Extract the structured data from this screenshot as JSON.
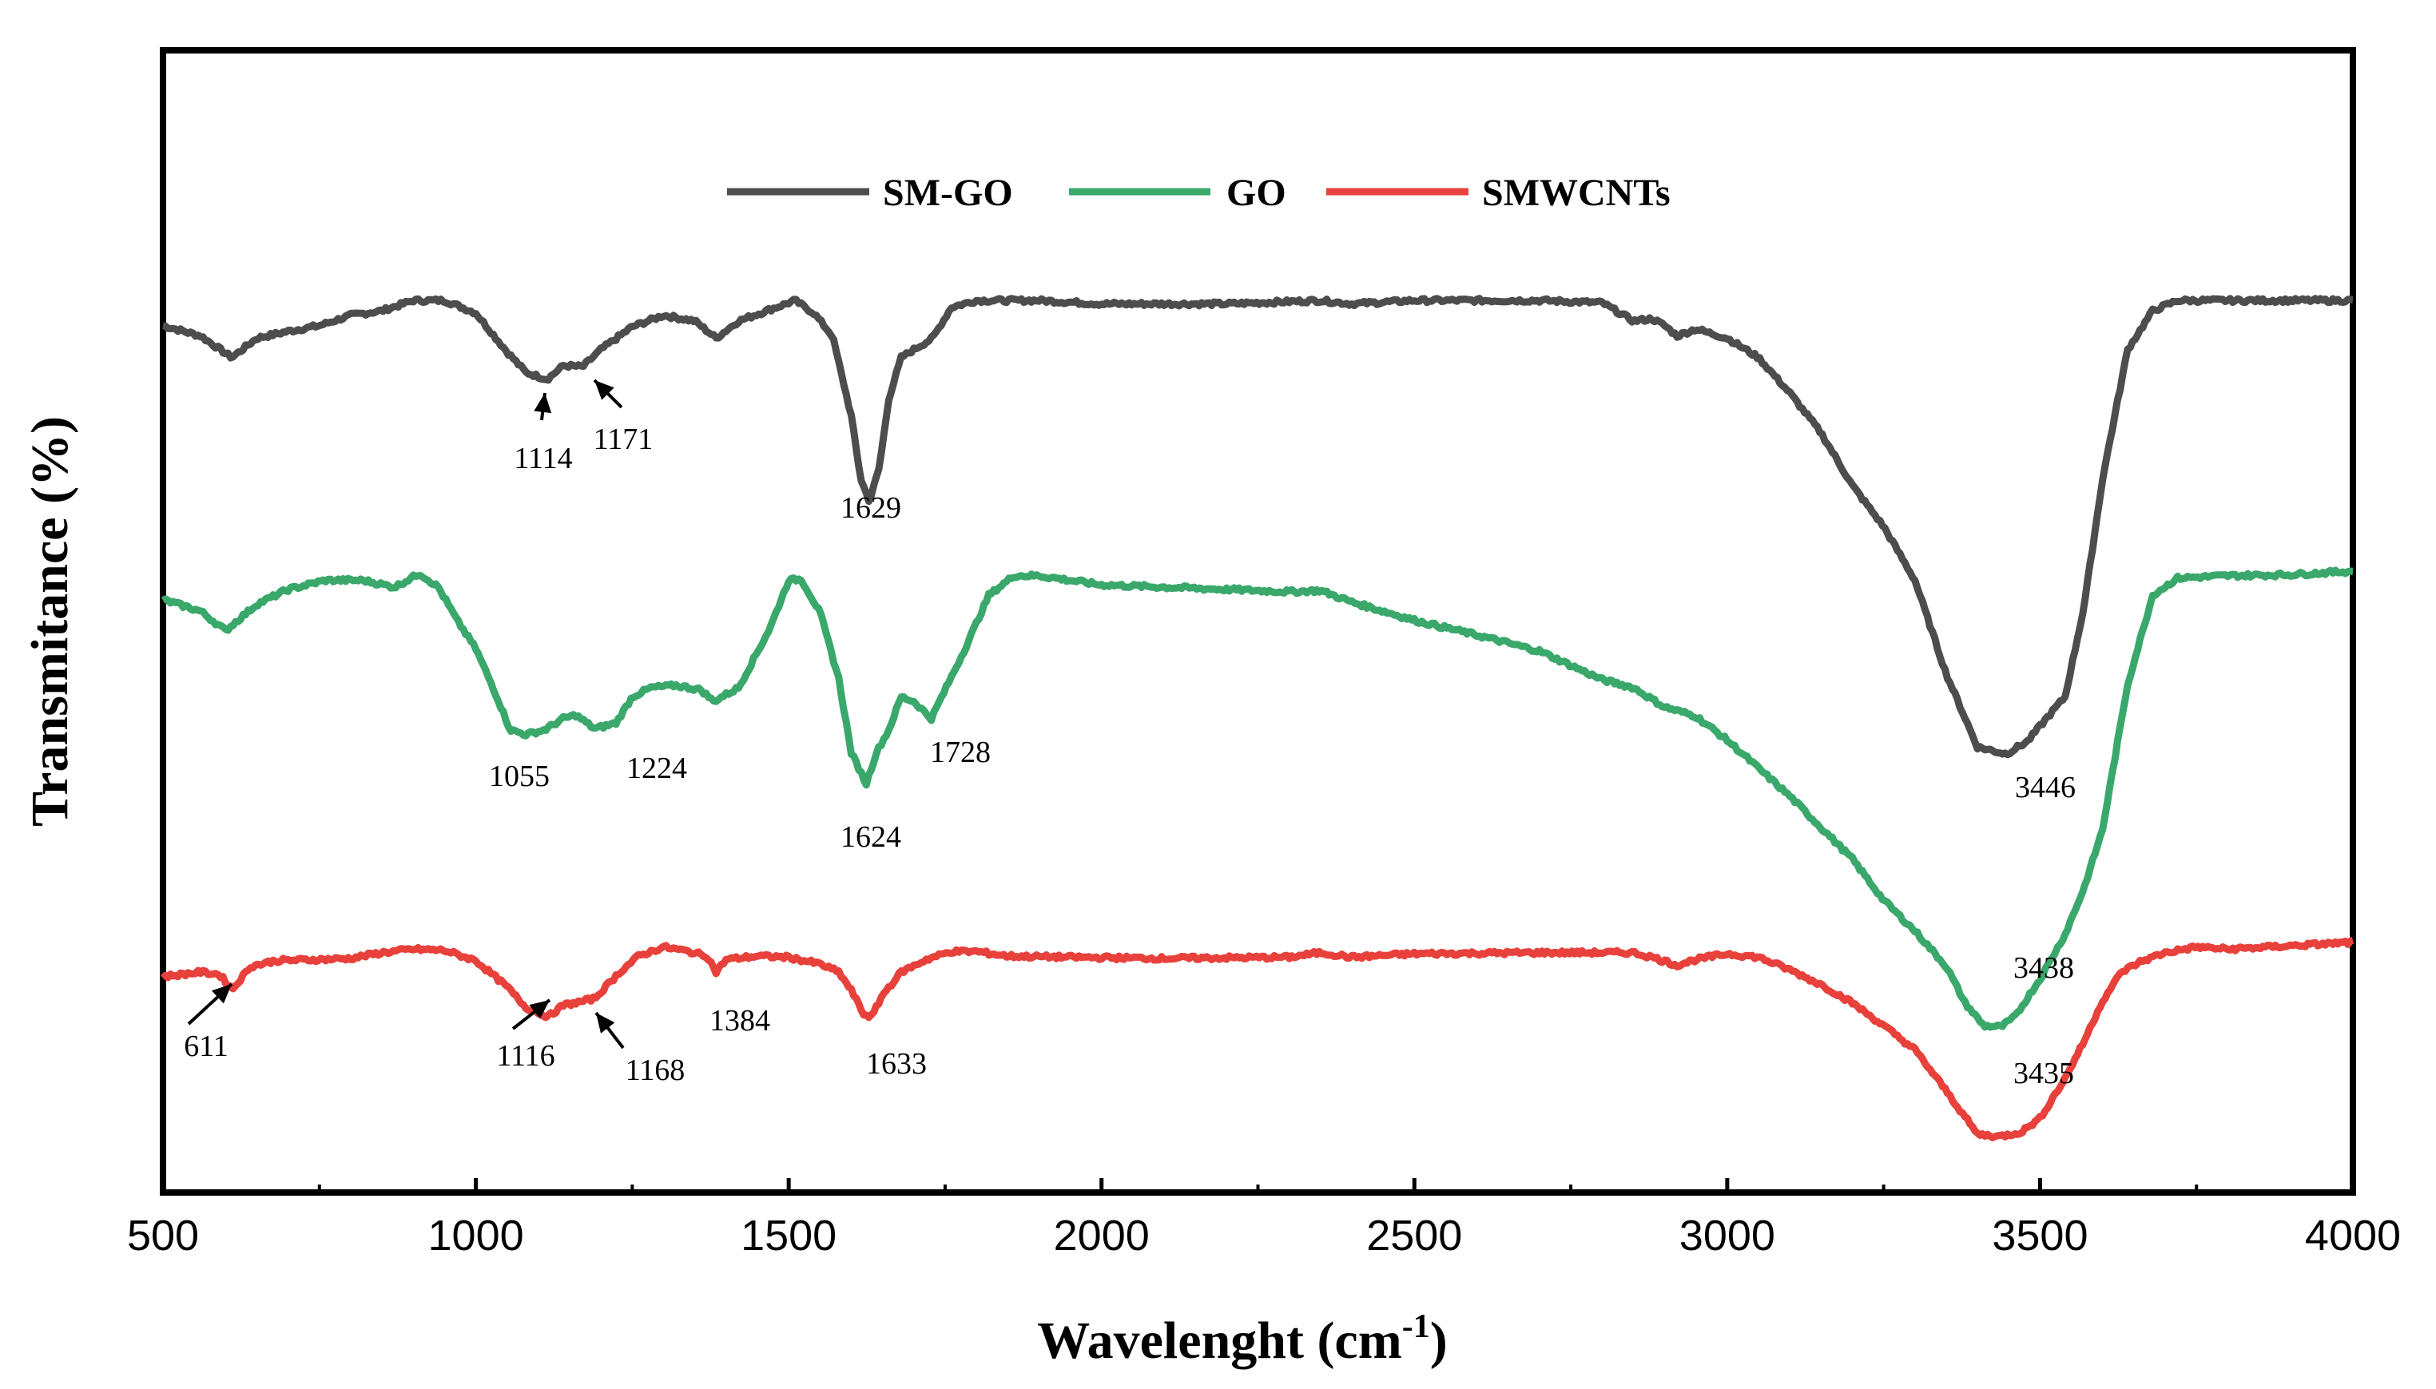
{
  "chart_data": {
    "type": "line",
    "title": "",
    "xlabel": "Wavelenght (cm",
    "xlabel_sup": "-1",
    "xlabel_tail": ")",
    "ylabel": "Transmitance (%)",
    "xlim": [
      500,
      4000
    ],
    "ylim": [
      0,
      100
    ],
    "xticks": [
      "500",
      "1000",
      "1500",
      "2000",
      "2500",
      "3000",
      "3500",
      "4000"
    ],
    "xtick_values": [
      500,
      1000,
      1500,
      2000,
      2500,
      3000,
      3500,
      4000
    ],
    "yticks_shown": false,
    "legend_position": "top",
    "series": [
      {
        "name": "SM-GO",
        "color": "#4d4d4d",
        "points": [
          [
            500,
            75.9
          ],
          [
            560,
            75.0
          ],
          [
            610,
            73.1
          ],
          [
            650,
            74.8
          ],
          [
            700,
            75.4
          ],
          [
            750,
            75.9
          ],
          [
            800,
            76.8
          ],
          [
            850,
            77.2
          ],
          [
            900,
            78.1
          ],
          [
            950,
            78.1
          ],
          [
            1000,
            77.0
          ],
          [
            1050,
            73.6
          ],
          [
            1080,
            71.8
          ],
          [
            1114,
            71.2
          ],
          [
            1140,
            72.4
          ],
          [
            1171,
            72.3
          ],
          [
            1200,
            73.8
          ],
          [
            1250,
            75.8
          ],
          [
            1300,
            76.8
          ],
          [
            1350,
            76.3
          ],
          [
            1384,
            74.8
          ],
          [
            1420,
            76.3
          ],
          [
            1480,
            77.5
          ],
          [
            1510,
            78.1
          ],
          [
            1540,
            77.0
          ],
          [
            1570,
            75.0
          ],
          [
            1600,
            68.0
          ],
          [
            1615,
            62.5
          ],
          [
            1629,
            60.5
          ],
          [
            1645,
            63.5
          ],
          [
            1660,
            69.5
          ],
          [
            1680,
            73.1
          ],
          [
            1700,
            73.8
          ],
          [
            1730,
            74.8
          ],
          [
            1760,
            77.5
          ],
          [
            1800,
            78.1
          ],
          [
            1900,
            78.1
          ],
          [
            2000,
            77.8
          ],
          [
            2100,
            77.8
          ],
          [
            2200,
            77.8
          ],
          [
            2350,
            78.1
          ],
          [
            2400,
            77.8
          ],
          [
            2500,
            78.1
          ],
          [
            2700,
            78.1
          ],
          [
            2800,
            77.9
          ],
          [
            2850,
            76.3
          ],
          [
            2880,
            76.5
          ],
          [
            2900,
            75.9
          ],
          [
            2920,
            75.0
          ],
          [
            2950,
            75.6
          ],
          [
            3000,
            74.8
          ],
          [
            3050,
            73.1
          ],
          [
            3100,
            70.0
          ],
          [
            3150,
            66.5
          ],
          [
            3200,
            61.9
          ],
          [
            3250,
            58.3
          ],
          [
            3300,
            53.6
          ],
          [
            3350,
            45.4
          ],
          [
            3400,
            39.0
          ],
          [
            3446,
            38.4
          ],
          [
            3480,
            39.5
          ],
          [
            3510,
            41.5
          ],
          [
            3540,
            43.4
          ],
          [
            3570,
            51.2
          ],
          [
            3600,
            62.5
          ],
          [
            3640,
            73.8
          ],
          [
            3680,
            77.2
          ],
          [
            3720,
            78.1
          ],
          [
            3800,
            78.1
          ],
          [
            3900,
            78.1
          ],
          [
            4000,
            78.1
          ]
        ]
      },
      {
        "name": "GO",
        "color": "#3aa86b",
        "points": [
          [
            500,
            51.9
          ],
          [
            560,
            50.9
          ],
          [
            600,
            49.2
          ],
          [
            650,
            51.5
          ],
          [
            700,
            52.8
          ],
          [
            760,
            53.6
          ],
          [
            820,
            53.6
          ],
          [
            870,
            53.0
          ],
          [
            910,
            54.2
          ],
          [
            940,
            53.0
          ],
          [
            970,
            50.1
          ],
          [
            1000,
            47.6
          ],
          [
            1030,
            43.9
          ],
          [
            1055,
            40.5
          ],
          [
            1080,
            40.1
          ],
          [
            1110,
            40.5
          ],
          [
            1140,
            41.5
          ],
          [
            1160,
            41.8
          ],
          [
            1190,
            40.6
          ],
          [
            1224,
            41.1
          ],
          [
            1250,
            43.4
          ],
          [
            1280,
            44.2
          ],
          [
            1320,
            44.4
          ],
          [
            1360,
            44.0
          ],
          [
            1380,
            43.0
          ],
          [
            1420,
            44.2
          ],
          [
            1470,
            49.4
          ],
          [
            1500,
            53.6
          ],
          [
            1520,
            53.7
          ],
          [
            1550,
            50.8
          ],
          [
            1580,
            45.0
          ],
          [
            1600,
            38.5
          ],
          [
            1624,
            35.8
          ],
          [
            1640,
            38.5
          ],
          [
            1660,
            40.5
          ],
          [
            1680,
            43.4
          ],
          [
            1700,
            43.0
          ],
          [
            1728,
            41.5
          ],
          [
            1750,
            44.0
          ],
          [
            1780,
            47.4
          ],
          [
            1820,
            52.3
          ],
          [
            1860,
            54.0
          ],
          [
            1900,
            54.0
          ],
          [
            2000,
            53.2
          ],
          [
            2100,
            53.0
          ],
          [
            2200,
            52.8
          ],
          [
            2300,
            52.6
          ],
          [
            2350,
            52.7
          ],
          [
            2400,
            51.7
          ],
          [
            2500,
            50.1
          ],
          [
            2600,
            48.8
          ],
          [
            2700,
            47.4
          ],
          [
            2800,
            44.9
          ],
          [
            2850,
            44.2
          ],
          [
            2900,
            42.5
          ],
          [
            2950,
            41.7
          ],
          [
            3000,
            39.6
          ],
          [
            3100,
            34.7
          ],
          [
            3200,
            29.2
          ],
          [
            3250,
            25.6
          ],
          [
            3300,
            22.9
          ],
          [
            3350,
            19.8
          ],
          [
            3380,
            16.6
          ],
          [
            3410,
            14.6
          ],
          [
            3438,
            14.5
          ],
          [
            3460,
            15.4
          ],
          [
            3500,
            18.7
          ],
          [
            3540,
            22.6
          ],
          [
            3570,
            26.6
          ],
          [
            3600,
            31.8
          ],
          [
            3640,
            44.5
          ],
          [
            3680,
            52.3
          ],
          [
            3720,
            53.8
          ],
          [
            3800,
            54.0
          ],
          [
            3900,
            54.1
          ],
          [
            4000,
            54.4
          ]
        ]
      },
      {
        "name": "SMWCNTs",
        "color": "#e8413c",
        "points": [
          [
            500,
            18.9
          ],
          [
            560,
            19.3
          ],
          [
            590,
            19.1
          ],
          [
            611,
            17.8
          ],
          [
            640,
            19.8
          ],
          [
            680,
            20.3
          ],
          [
            750,
            20.4
          ],
          [
            800,
            20.5
          ],
          [
            850,
            21.0
          ],
          [
            900,
            21.3
          ],
          [
            950,
            21.2
          ],
          [
            1000,
            20.3
          ],
          [
            1050,
            18.0
          ],
          [
            1080,
            16.2
          ],
          [
            1116,
            15.4
          ],
          [
            1140,
            16.4
          ],
          [
            1168,
            16.7
          ],
          [
            1190,
            17.0
          ],
          [
            1230,
            19.3
          ],
          [
            1260,
            20.7
          ],
          [
            1300,
            21.5
          ],
          [
            1340,
            21.1
          ],
          [
            1370,
            20.7
          ],
          [
            1384,
            19.3
          ],
          [
            1400,
            20.4
          ],
          [
            1450,
            20.7
          ],
          [
            1500,
            20.6
          ],
          [
            1550,
            20.0
          ],
          [
            1580,
            19.3
          ],
          [
            1600,
            17.7
          ],
          [
            1620,
            15.6
          ],
          [
            1633,
            15.4
          ],
          [
            1650,
            17.3
          ],
          [
            1680,
            19.3
          ],
          [
            1720,
            20.4
          ],
          [
            1760,
            21.1
          ],
          [
            1800,
            21.1
          ],
          [
            1850,
            20.7
          ],
          [
            1950,
            20.6
          ],
          [
            2100,
            20.5
          ],
          [
            2300,
            20.6
          ],
          [
            2350,
            21.0
          ],
          [
            2400,
            20.6
          ],
          [
            2500,
            20.9
          ],
          [
            2700,
            21.0
          ],
          [
            2850,
            21.0
          ],
          [
            2880,
            20.6
          ],
          [
            2920,
            19.9
          ],
          [
            2950,
            20.4
          ],
          [
            3000,
            20.9
          ],
          [
            3050,
            20.6
          ],
          [
            3100,
            19.5
          ],
          [
            3150,
            18.2
          ],
          [
            3200,
            16.6
          ],
          [
            3250,
            14.6
          ],
          [
            3300,
            12.5
          ],
          [
            3350,
            8.9
          ],
          [
            3400,
            5.1
          ],
          [
            3435,
            4.9
          ],
          [
            3470,
            5.3
          ],
          [
            3500,
            6.5
          ],
          [
            3540,
            10.0
          ],
          [
            3570,
            13.2
          ],
          [
            3600,
            16.8
          ],
          [
            3630,
            19.3
          ],
          [
            3660,
            20.2
          ],
          [
            3700,
            21.0
          ],
          [
            3750,
            21.5
          ],
          [
            3800,
            21.3
          ],
          [
            3900,
            21.6
          ],
          [
            4000,
            21.9
          ]
        ]
      }
    ],
    "annotations": [
      {
        "text": "1114",
        "x": 1114,
        "series": "SM-GO",
        "arrow": true
      },
      {
        "text": "1171",
        "x": 1171,
        "series": "SM-GO",
        "arrow": true
      },
      {
        "text": "1629",
        "x": 1629,
        "series": "SM-GO",
        "arrow": false
      },
      {
        "text": "3446",
        "x": 3446,
        "series": "SM-GO",
        "arrow": false
      },
      {
        "text": "1055",
        "x": 1055,
        "series": "GO",
        "arrow": false
      },
      {
        "text": "1224",
        "x": 1224,
        "series": "GO",
        "arrow": false
      },
      {
        "text": "1624",
        "x": 1624,
        "series": "GO",
        "arrow": false
      },
      {
        "text": "1728",
        "x": 1728,
        "series": "GO",
        "arrow": false
      },
      {
        "text": "3438",
        "x": 3438,
        "series": "GO",
        "arrow": false
      },
      {
        "text": "611",
        "x": 611,
        "series": "SMWCNTs",
        "arrow": true
      },
      {
        "text": "1116",
        "x": 1116,
        "series": "SMWCNTs",
        "arrow": true
      },
      {
        "text": "1168",
        "x": 1168,
        "series": "SMWCNTs",
        "arrow": true
      },
      {
        "text": "1384",
        "x": 1384,
        "series": "SMWCNTs",
        "arrow": false
      },
      {
        "text": "1633",
        "x": 1633,
        "series": "SMWCNTs",
        "arrow": false
      },
      {
        "text": "3435",
        "x": 3435,
        "series": "SMWCNTs",
        "arrow": false
      }
    ]
  }
}
